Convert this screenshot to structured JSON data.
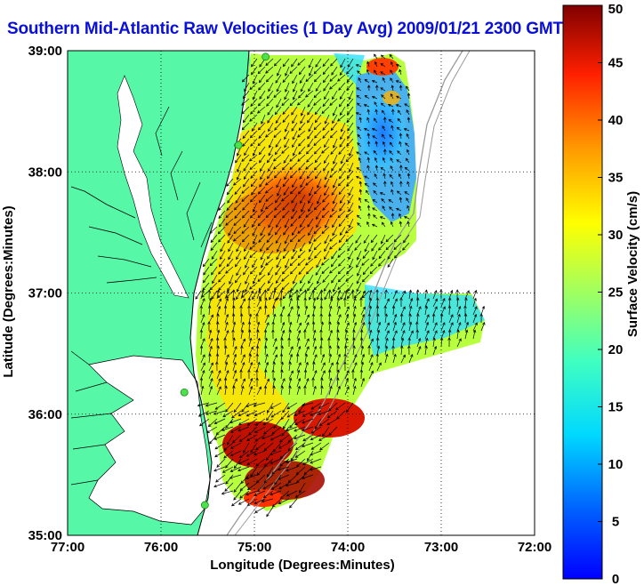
{
  "title": "Southern Mid-Atlantic Raw Velocities (1 Day Avg) 2009/01/21 2300 GMT",
  "axes": {
    "xlabel": "Longitude (Degrees:Minutes)",
    "ylabel": "Latitude (Degrees:Minutes)",
    "x_ticks": [
      "77:00",
      "76:00",
      "75:00",
      "74:00",
      "73:00",
      "72:00"
    ],
    "y_ticks": [
      "39:00",
      "38:00",
      "37:00",
      "36:00",
      "35:00"
    ],
    "x_range": [
      -77,
      -72
    ],
    "y_range": [
      35,
      39
    ],
    "grid": "dotted"
  },
  "colorbar": {
    "label": "Surface Velocity (cm/s)",
    "ticks": [
      "50",
      "45",
      "40",
      "35",
      "30",
      "25",
      "20",
      "15",
      "10",
      "5",
      "0"
    ],
    "range": [
      0,
      50
    ],
    "colormap": "jet"
  },
  "colors": {
    "land": "#57f7a8",
    "title": "#0a10d8",
    "station": "#4de24d",
    "bathymetry": "#9a9a9a"
  },
  "stations": [
    {
      "lon": -74.88,
      "lat": 38.95
    },
    {
      "lon": -75.17,
      "lat": 38.22
    },
    {
      "lon": -75.75,
      "lat": 36.18
    },
    {
      "lon": -75.53,
      "lat": 35.25
    }
  ]
}
